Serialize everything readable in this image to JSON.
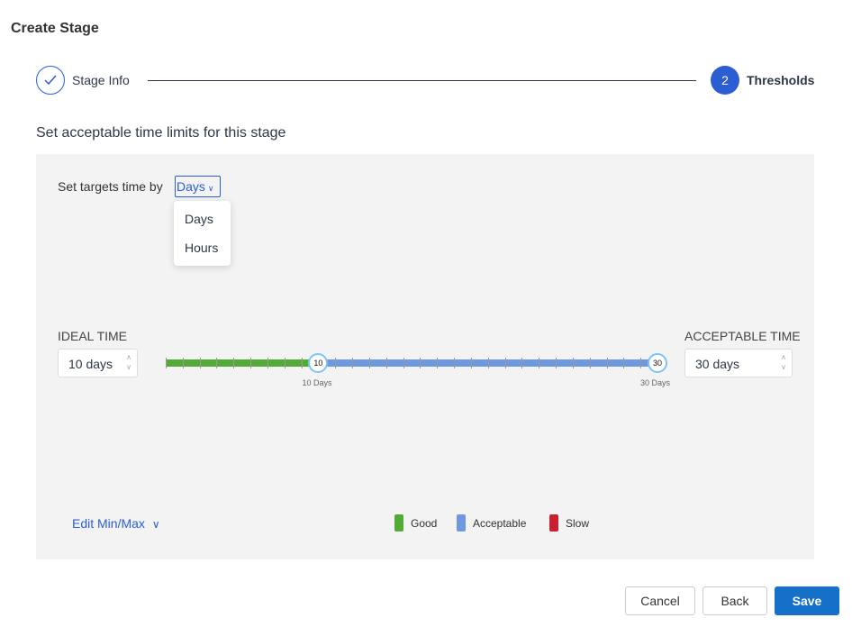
{
  "title": "Create Stage",
  "steps": [
    {
      "label": "Stage Info",
      "status": "complete",
      "icon": "check-icon"
    },
    {
      "number": "2",
      "label": "Thresholds",
      "status": "active"
    }
  ],
  "subtitle": "Set acceptable time limits for this stage",
  "targets": {
    "label": "Set targets time by",
    "selected": "Days",
    "options": [
      "Days",
      "Hours"
    ]
  },
  "ideal": {
    "label": "IDEAL TIME",
    "value": "10 days"
  },
  "acceptable": {
    "label": "ACCEPTABLE TIME",
    "value": "30 days"
  },
  "slider": {
    "min": 1,
    "max": 30,
    "ideal": 10,
    "acceptable": 30,
    "ideal_thumb": "10",
    "acceptable_thumb": "30",
    "ideal_caption": "10 Days",
    "acceptable_caption": "30 Days"
  },
  "edit_minmax": "Edit Min/Max",
  "legend": [
    {
      "label": "Good",
      "color": "#52ab35"
    },
    {
      "label": "Acceptable",
      "color": "#6e99e0"
    },
    {
      "label": "Slow",
      "color": "#c8202e"
    }
  ],
  "buttons": {
    "cancel": "Cancel",
    "back": "Back",
    "save": "Save"
  },
  "colors": {
    "accent": "#2b5dd3",
    "save": "#1470c8"
  }
}
